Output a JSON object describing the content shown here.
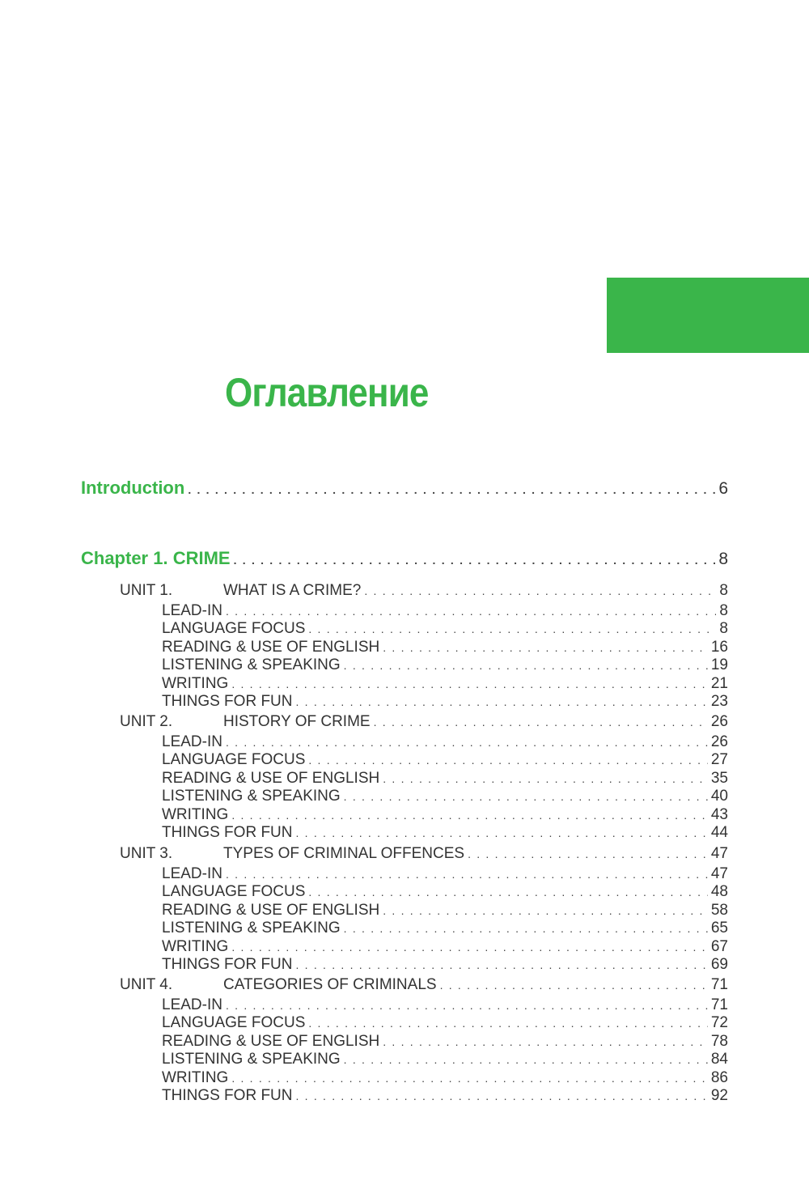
{
  "title": "Оглавление",
  "accent_color": "#3ab54a",
  "introduction": {
    "label": "Introduction",
    "page": "6"
  },
  "chapter": {
    "label": "Chapter 1. CRIME",
    "page": "8"
  },
  "units": [
    {
      "number": "UNIT 1.",
      "title": "WHAT IS A CRIME?",
      "page": "8",
      "sections": [
        {
          "label": "LEAD-IN",
          "page": "8"
        },
        {
          "label": "LANGUAGE FOCUS",
          "page": "8"
        },
        {
          "label": "READING & USE OF ENGLISH",
          "page": "16"
        },
        {
          "label": "LISTENING & SPEAKING",
          "page": "19"
        },
        {
          "label": "WRITING",
          "page": "21"
        },
        {
          "label": "THINGS FOR FUN",
          "page": "23"
        }
      ]
    },
    {
      "number": "UNIT 2.",
      "title": "HISTORY OF CRIME",
      "page": "26",
      "sections": [
        {
          "label": "LEAD-IN",
          "page": "26"
        },
        {
          "label": "LANGUAGE FOCUS",
          "page": "27"
        },
        {
          "label": "READING & USE OF ENGLISH",
          "page": "35"
        },
        {
          "label": "LISTENING & SPEAKING",
          "page": "40"
        },
        {
          "label": "WRITING",
          "page": "43"
        },
        {
          "label": "THINGS FOR FUN",
          "page": "44"
        }
      ]
    },
    {
      "number": "UNIT 3.",
      "title": "TYPES OF CRIMINAL OFFENCES",
      "page": "47",
      "sections": [
        {
          "label": "LEAD-IN",
          "page": "47"
        },
        {
          "label": "LANGUAGE FOCUS",
          "page": "48"
        },
        {
          "label": "READING & USE OF ENGLISH",
          "page": "58"
        },
        {
          "label": "LISTENING & SPEAKING",
          "page": "65"
        },
        {
          "label": "WRITING",
          "page": "67"
        },
        {
          "label": "THINGS FOR FUN",
          "page": "69"
        }
      ]
    },
    {
      "number": "UNIT 4.",
      "title": "CATEGORIES OF CRIMINALS",
      "page": "71",
      "sections": [
        {
          "label": "LEAD-IN",
          "page": "71"
        },
        {
          "label": "LANGUAGE FOCUS",
          "page": "72"
        },
        {
          "label": "READING & USE OF ENGLISH",
          "page": "78"
        },
        {
          "label": "LISTENING & SPEAKING",
          "page": "84"
        },
        {
          "label": "WRITING",
          "page": "86"
        },
        {
          "label": "THINGS FOR FUN",
          "page": "92"
        }
      ]
    }
  ]
}
